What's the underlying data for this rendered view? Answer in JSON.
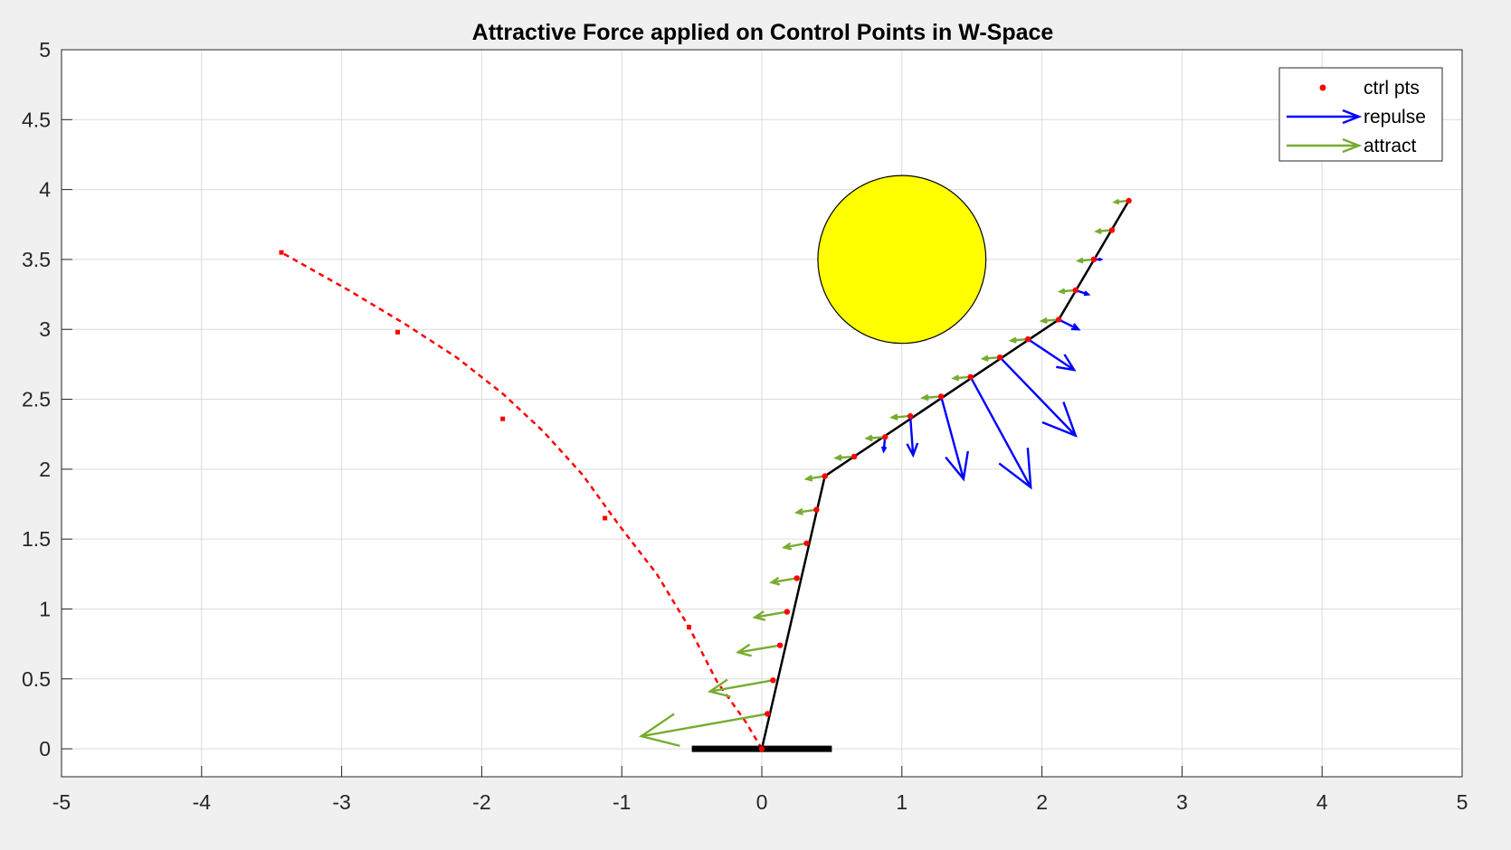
{
  "chart_data": {
    "type": "scatter",
    "title": "Attractive Force applied on Control Points in W-Space",
    "xlabel": "",
    "ylabel": "",
    "xlim": [
      -5,
      5
    ],
    "ylim": [
      -0.2,
      5
    ],
    "xticks": [
      -5,
      -4,
      -3,
      -2,
      -1,
      0,
      1,
      2,
      3,
      4,
      5
    ],
    "yticks": [
      0,
      0.5,
      1,
      1.5,
      2,
      2.5,
      3,
      3.5,
      4,
      4.5,
      5
    ],
    "grid": true,
    "legend_position": "top-right",
    "legend": [
      {
        "label": "ctrl pts",
        "kind": "marker",
        "color": "#ff0000"
      },
      {
        "label": "repulse",
        "kind": "arrow",
        "color": "#0000ff"
      },
      {
        "label": "attract",
        "kind": "arrow",
        "color": "#77ac30"
      }
    ],
    "obstacle": {
      "center": [
        1.0,
        3.5
      ],
      "radius": 0.6,
      "fill": "#ffff00"
    },
    "base": {
      "x": [
        -0.5,
        0.5
      ],
      "y": 0
    },
    "arm": {
      "x": [
        0,
        0.45,
        2.12,
        2.62
      ],
      "y": [
        0,
        1.95,
        3.07,
        3.92
      ],
      "color": "#000000"
    },
    "goal_path": {
      "x": [
        0,
        -0.12,
        -0.32,
        -0.52,
        -0.75,
        -1.02,
        -1.28,
        -1.56,
        -1.85,
        -2.18,
        -2.55,
        -2.95,
        -3.43
      ],
      "y": [
        0,
        0.2,
        0.48,
        0.87,
        1.25,
        1.6,
        1.96,
        2.27,
        2.54,
        2.8,
        3.04,
        3.28,
        3.55
      ],
      "color": "#ff0000",
      "markers_x": [
        -0.52,
        -1.12,
        -1.85,
        -2.6,
        -3.43
      ],
      "markers_y": [
        0.87,
        1.65,
        2.36,
        2.98,
        3.55
      ]
    },
    "ctrl_pts": {
      "x": [
        0,
        0.04,
        0.08,
        0.13,
        0.18,
        0.25,
        0.32,
        0.39,
        0.45,
        0.66,
        0.88,
        1.06,
        1.28,
        1.49,
        1.7,
        1.9,
        2.12,
        2.24,
        2.37,
        2.5,
        2.62
      ],
      "y": [
        0,
        0.25,
        0.49,
        0.74,
        0.98,
        1.22,
        1.47,
        1.71,
        1.95,
        2.09,
        2.23,
        2.38,
        2.52,
        2.66,
        2.8,
        2.93,
        3.07,
        3.28,
        3.5,
        3.71,
        3.92
      ],
      "color": "#ff0000"
    },
    "attract": {
      "color": "#77ac30",
      "vectors": [
        {
          "x": 0.04,
          "y": 0.25,
          "u": -0.9,
          "v": -0.16
        },
        {
          "x": 0.08,
          "y": 0.49,
          "u": -0.45,
          "v": -0.08
        },
        {
          "x": 0.13,
          "y": 0.74,
          "u": -0.3,
          "v": -0.05
        },
        {
          "x": 0.18,
          "y": 0.98,
          "u": -0.23,
          "v": -0.04
        },
        {
          "x": 0.25,
          "y": 1.22,
          "u": -0.18,
          "v": -0.03
        },
        {
          "x": 0.32,
          "y": 1.47,
          "u": -0.16,
          "v": -0.03
        },
        {
          "x": 0.39,
          "y": 1.71,
          "u": -0.14,
          "v": -0.02
        },
        {
          "x": 0.45,
          "y": 1.95,
          "u": -0.13,
          "v": -0.02
        },
        {
          "x": 0.66,
          "y": 2.09,
          "u": -0.13,
          "v": -0.01
        },
        {
          "x": 0.88,
          "y": 2.23,
          "u": -0.13,
          "v": -0.01
        },
        {
          "x": 1.06,
          "y": 2.38,
          "u": -0.13,
          "v": -0.01
        },
        {
          "x": 1.28,
          "y": 2.52,
          "u": -0.13,
          "v": -0.01
        },
        {
          "x": 1.49,
          "y": 2.66,
          "u": -0.12,
          "v": -0.01
        },
        {
          "x": 1.7,
          "y": 2.8,
          "u": -0.12,
          "v": -0.01
        },
        {
          "x": 1.9,
          "y": 2.93,
          "u": -0.12,
          "v": -0.01
        },
        {
          "x": 2.12,
          "y": 3.07,
          "u": -0.12,
          "v": -0.01
        },
        {
          "x": 2.24,
          "y": 3.28,
          "u": -0.11,
          "v": -0.01
        },
        {
          "x": 2.37,
          "y": 3.5,
          "u": -0.11,
          "v": -0.01
        },
        {
          "x": 2.5,
          "y": 3.71,
          "u": -0.11,
          "v": -0.01
        },
        {
          "x": 2.62,
          "y": 3.92,
          "u": -0.1,
          "v": -0.01
        }
      ]
    },
    "repulse": {
      "color": "#0000ff",
      "vectors": [
        {
          "x": 0.88,
          "y": 2.23,
          "u": -0.01,
          "v": -0.1
        },
        {
          "x": 1.06,
          "y": 2.38,
          "u": 0.02,
          "v": -0.28
        },
        {
          "x": 1.28,
          "y": 2.52,
          "u": 0.16,
          "v": -0.59
        },
        {
          "x": 1.49,
          "y": 2.66,
          "u": 0.43,
          "v": -0.79
        },
        {
          "x": 1.7,
          "y": 2.8,
          "u": 0.54,
          "v": -0.56
        },
        {
          "x": 1.9,
          "y": 2.93,
          "u": 0.33,
          "v": -0.22
        },
        {
          "x": 2.12,
          "y": 3.07,
          "u": 0.14,
          "v": -0.07
        },
        {
          "x": 2.24,
          "y": 3.28,
          "u": 0.09,
          "v": -0.03
        },
        {
          "x": 2.37,
          "y": 3.5,
          "u": 0.05,
          "v": 0.0
        }
      ]
    }
  }
}
